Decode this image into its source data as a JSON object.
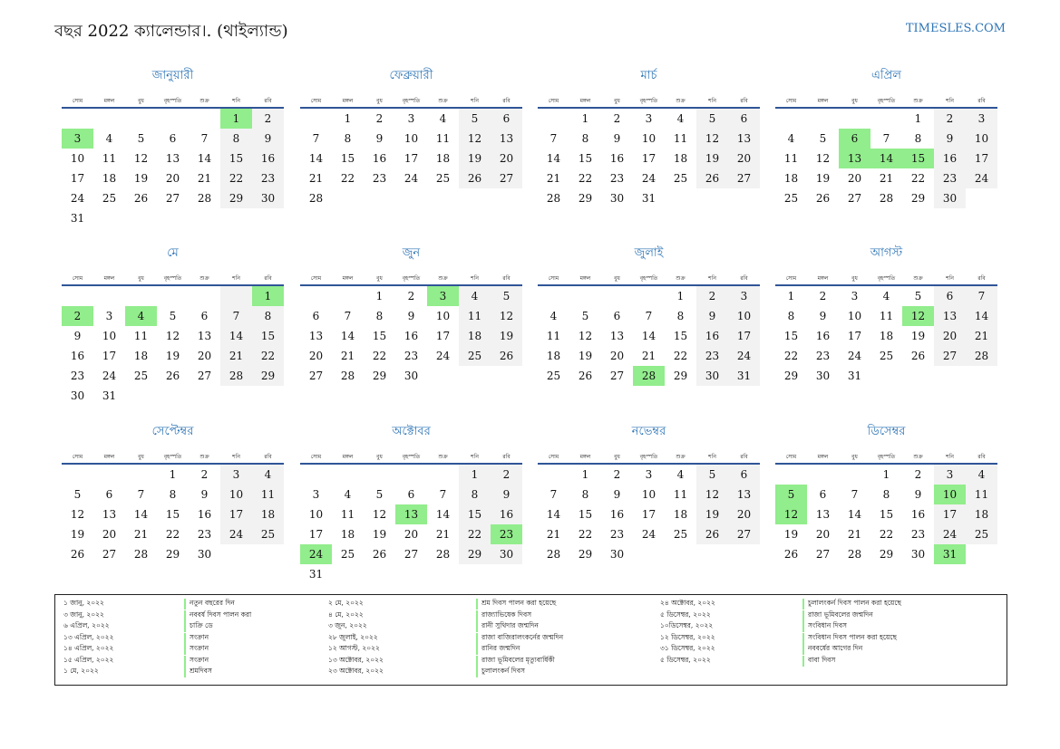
{
  "header": {
    "title": "বছর 2022 ক্যালেন্ডার।. (থাইল্যান্ড)",
    "site": "TIMESLES.COM"
  },
  "weekdays": [
    "সোম",
    "মঙ্গল",
    "বুধ",
    "বৃহস্পতি",
    "শুক্র",
    "শনি",
    "রবি"
  ],
  "months": [
    {
      "name": "জানুয়ারী",
      "holidays": [
        1,
        3
      ],
      "weeks": [
        [
          null,
          null,
          null,
          null,
          null,
          1,
          2
        ],
        [
          3,
          4,
          5,
          6,
          7,
          8,
          9
        ],
        [
          10,
          11,
          12,
          13,
          14,
          15,
          16
        ],
        [
          17,
          18,
          19,
          20,
          21,
          22,
          23
        ],
        [
          24,
          25,
          26,
          27,
          28,
          29,
          30
        ],
        [
          31
        ]
      ]
    },
    {
      "name": "ফেব্রুয়ারী",
      "holidays": [],
      "weeks": [
        [
          null,
          1,
          2,
          3,
          4,
          5,
          6
        ],
        [
          7,
          8,
          9,
          10,
          11,
          12,
          13
        ],
        [
          14,
          15,
          16,
          17,
          18,
          19,
          20
        ],
        [
          21,
          22,
          23,
          24,
          25,
          26,
          27
        ],
        [
          28
        ]
      ]
    },
    {
      "name": "মার্চ",
      "holidays": [],
      "weeks": [
        [
          null,
          1,
          2,
          3,
          4,
          5,
          6
        ],
        [
          7,
          8,
          9,
          10,
          11,
          12,
          13
        ],
        [
          14,
          15,
          16,
          17,
          18,
          19,
          20
        ],
        [
          21,
          22,
          23,
          24,
          25,
          26,
          27
        ],
        [
          28,
          29,
          30,
          31
        ]
      ]
    },
    {
      "name": "এপ্রিল",
      "holidays": [
        6,
        13,
        14,
        15
      ],
      "weeks": [
        [
          null,
          null,
          null,
          null,
          1,
          2,
          3
        ],
        [
          4,
          5,
          6,
          7,
          8,
          9,
          10
        ],
        [
          11,
          12,
          13,
          14,
          15,
          16,
          17
        ],
        [
          18,
          19,
          20,
          21,
          22,
          23,
          24
        ],
        [
          25,
          26,
          27,
          28,
          29,
          30
        ]
      ]
    },
    {
      "name": "মে",
      "holidays": [
        1,
        2,
        4
      ],
      "weeks": [
        [
          null,
          null,
          null,
          null,
          null,
          null,
          1
        ],
        [
          2,
          3,
          4,
          5,
          6,
          7,
          8
        ],
        [
          9,
          10,
          11,
          12,
          13,
          14,
          15
        ],
        [
          16,
          17,
          18,
          19,
          20,
          21,
          22
        ],
        [
          23,
          24,
          25,
          26,
          27,
          28,
          29
        ],
        [
          30,
          31
        ]
      ]
    },
    {
      "name": "জুন",
      "holidays": [
        3
      ],
      "weeks": [
        [
          null,
          null,
          1,
          2,
          3,
          4,
          5
        ],
        [
          6,
          7,
          8,
          9,
          10,
          11,
          12
        ],
        [
          13,
          14,
          15,
          16,
          17,
          18,
          19
        ],
        [
          20,
          21,
          22,
          23,
          24,
          25,
          26
        ],
        [
          27,
          28,
          29,
          30
        ]
      ]
    },
    {
      "name": "জুলাই",
      "holidays": [
        28
      ],
      "weeks": [
        [
          null,
          null,
          null,
          null,
          1,
          2,
          3
        ],
        [
          4,
          5,
          6,
          7,
          8,
          9,
          10
        ],
        [
          11,
          12,
          13,
          14,
          15,
          16,
          17
        ],
        [
          18,
          19,
          20,
          21,
          22,
          23,
          24
        ],
        [
          25,
          26,
          27,
          28,
          29,
          30,
          31
        ]
      ]
    },
    {
      "name": "আগস্ট",
      "holidays": [
        12
      ],
      "weeks": [
        [
          1,
          2,
          3,
          4,
          5,
          6,
          7
        ],
        [
          8,
          9,
          10,
          11,
          12,
          13,
          14
        ],
        [
          15,
          16,
          17,
          18,
          19,
          20,
          21
        ],
        [
          22,
          23,
          24,
          25,
          26,
          27,
          28
        ],
        [
          29,
          30,
          31
        ]
      ]
    },
    {
      "name": "সেপ্টেম্বর",
      "holidays": [],
      "weeks": [
        [
          null,
          null,
          null,
          1,
          2,
          3,
          4
        ],
        [
          5,
          6,
          7,
          8,
          9,
          10,
          11
        ],
        [
          12,
          13,
          14,
          15,
          16,
          17,
          18
        ],
        [
          19,
          20,
          21,
          22,
          23,
          24,
          25
        ],
        [
          26,
          27,
          28,
          29,
          30
        ]
      ]
    },
    {
      "name": "অক্টোবর",
      "holidays": [
        13,
        23,
        24
      ],
      "weeks": [
        [
          null,
          null,
          null,
          null,
          null,
          1,
          2
        ],
        [
          3,
          4,
          5,
          6,
          7,
          8,
          9
        ],
        [
          10,
          11,
          12,
          13,
          14,
          15,
          16
        ],
        [
          17,
          18,
          19,
          20,
          21,
          22,
          23
        ],
        [
          24,
          25,
          26,
          27,
          28,
          29,
          30
        ],
        [
          31
        ]
      ]
    },
    {
      "name": "নভেম্বর",
      "holidays": [],
      "weeks": [
        [
          null,
          1,
          2,
          3,
          4,
          5,
          6
        ],
        [
          7,
          8,
          9,
          10,
          11,
          12,
          13
        ],
        [
          14,
          15,
          16,
          17,
          18,
          19,
          20
        ],
        [
          21,
          22,
          23,
          24,
          25,
          26,
          27
        ],
        [
          28,
          29,
          30
        ]
      ]
    },
    {
      "name": "ডিসেম্বর",
      "holidays": [
        5,
        10,
        12,
        31
      ],
      "weeks": [
        [
          null,
          null,
          null,
          1,
          2,
          3,
          4
        ],
        [
          5,
          6,
          7,
          8,
          9,
          10,
          11
        ],
        [
          12,
          13,
          14,
          15,
          16,
          17,
          18
        ],
        [
          19,
          20,
          21,
          22,
          23,
          24,
          25
        ],
        [
          26,
          27,
          28,
          29,
          30,
          31
        ]
      ]
    }
  ],
  "holiday_list": [
    [
      [
        "১ জানু, ২০২২",
        "নতুন বছরের দিন"
      ],
      [
        "৩ জানু, ২০২২",
        "নববর্ষ দিবস পালন করা"
      ],
      [
        "৬ এপ্রিল, ২০২২",
        "চাক্রি ডে"
      ],
      [
        "১৩ এপ্রিল, ২০২২",
        "সংক্রান"
      ],
      [
        "১৪ এপ্রিল, ২০২২",
        "সংক্রান"
      ],
      [
        "১৫ এপ্রিল, ২০২২",
        "সংক্রান"
      ],
      [
        "১ মে, ২০২২",
        "শ্রমদিবস"
      ]
    ],
    [
      [
        "২ মে, ২০২২",
        "শ্রম দিবস পালন করা হয়েছে"
      ],
      [
        "৪ মে, ২০২২",
        "রাজ্যাভিষেক দিবস"
      ],
      [
        "৩ জুন, ২০২২",
        "রানী সুথিদার জন্মদিন"
      ],
      [
        "২৮ জুলাই, ২০২২",
        "রাজা বাজিরালংকর্নের জন্মদিন"
      ],
      [
        "১২ আগস্ট, ২০২২",
        "রানির জন্মদিন"
      ],
      [
        "১৩ অক্টোবর, ২০২২",
        "রাজা ভূমিবলের মৃত্যুবার্ষিকী"
      ],
      [
        "২৩ অক্টোবর, ২০২২",
        "চুলালংকর্ন দিবস"
      ]
    ],
    [
      [
        "২৪ অক্টোবর, ২০২২",
        "চুলালংকর্ন দিবস পালন করা হয়েছে"
      ],
      [
        "৫ ডিসেম্বর, ২০২২",
        "রাজা ভূমিবলের জন্মদিন"
      ],
      [
        "১০ডিসেম্বর, ২০২২",
        "সংবিধান দিবস"
      ],
      [
        "১২ ডিসেম্বর, ২০২২",
        "সংবিধান দিবস পালন করা হয়েছে"
      ],
      [
        "৩১ ডিসেম্বর, ২০২২",
        "নববর্ষের আগের দিন"
      ],
      [
        "৫ ডিসেম্বর, ২০২২",
        "বাবা দিবস"
      ]
    ]
  ]
}
